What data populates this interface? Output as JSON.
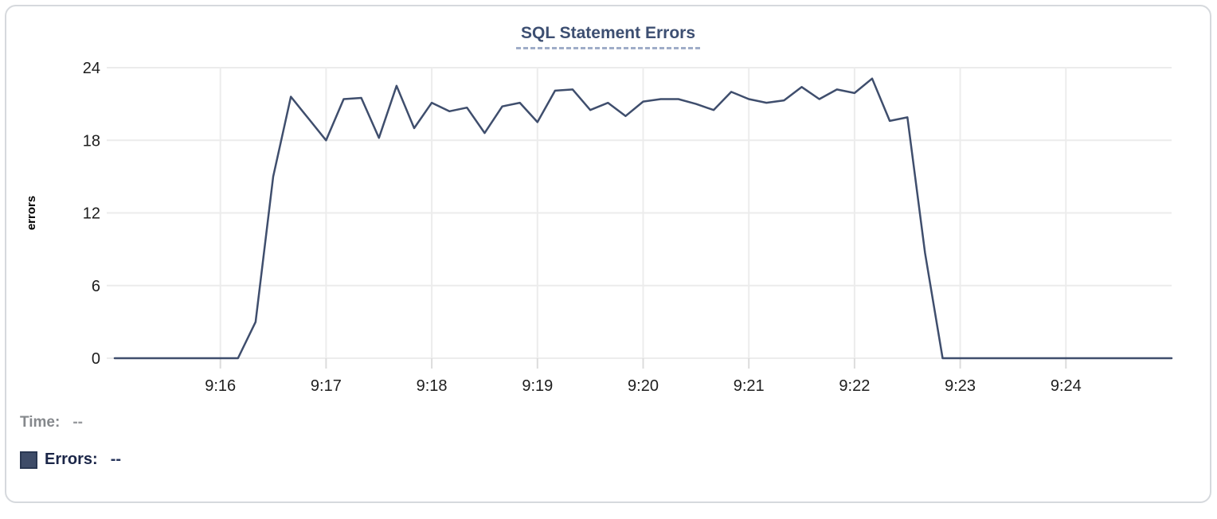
{
  "chart": {
    "title": "SQL Statement Errors"
  },
  "legend": {
    "time_label": "Time:",
    "time_value": "--",
    "errors_label": "Errors:",
    "errors_value": "--",
    "swatch_color": "#3e4c68"
  },
  "colors": {
    "title": "#3d4f72",
    "title_underline": "#9fadc8",
    "card_border": "#d6d9dd",
    "series_line": "#3f4e6d",
    "grid": "#ececec",
    "axis_tick": "#dcdcdc",
    "tick_text": "#1d1d1d"
  },
  "chart_data": {
    "type": "line",
    "title": "SQL Statement Errors",
    "xlabel": "",
    "ylabel": "errors",
    "ylim": [
      0,
      24
    ],
    "y_ticks": [
      0,
      6,
      12,
      18,
      24
    ],
    "x_ticks": [
      "9:16",
      "9:17",
      "9:18",
      "9:19",
      "9:20",
      "9:21",
      "9:22",
      "9:23",
      "9:24"
    ],
    "x_range": [
      "9:15:00",
      "9:25:00"
    ],
    "grid": true,
    "legend_position": "bottom-left",
    "grid_color": "#ececec",
    "tick_color": "#dcdcdc",
    "series": [
      {
        "name": "Errors",
        "color": "#3f4e6d",
        "points": [
          [
            "9:15:00",
            0
          ],
          [
            "9:15:10",
            0
          ],
          [
            "9:15:20",
            0
          ],
          [
            "9:15:30",
            0
          ],
          [
            "9:15:40",
            0
          ],
          [
            "9:15:50",
            0
          ],
          [
            "9:16:00",
            0
          ],
          [
            "9:16:10",
            0
          ],
          [
            "9:16:20",
            3
          ],
          [
            "9:16:30",
            15
          ],
          [
            "9:16:40",
            21.6
          ],
          [
            "9:16:50",
            19.8
          ],
          [
            "9:17:00",
            18
          ],
          [
            "9:17:10",
            21.4
          ],
          [
            "9:17:20",
            21.5
          ],
          [
            "9:17:30",
            18.2
          ],
          [
            "9:17:40",
            22.5
          ],
          [
            "9:17:50",
            19
          ],
          [
            "9:18:00",
            21.1
          ],
          [
            "9:18:10",
            20.4
          ],
          [
            "9:18:20",
            20.7
          ],
          [
            "9:18:30",
            18.6
          ],
          [
            "9:18:40",
            20.8
          ],
          [
            "9:18:50",
            21.1
          ],
          [
            "9:19:00",
            19.5
          ],
          [
            "9:19:10",
            22.1
          ],
          [
            "9:19:20",
            22.2
          ],
          [
            "9:19:30",
            20.5
          ],
          [
            "9:19:40",
            21.1
          ],
          [
            "9:19:50",
            20
          ],
          [
            "9:20:00",
            21.2
          ],
          [
            "9:20:10",
            21.4
          ],
          [
            "9:20:20",
            21.4
          ],
          [
            "9:20:30",
            21
          ],
          [
            "9:20:40",
            20.5
          ],
          [
            "9:20:50",
            22
          ],
          [
            "9:21:00",
            21.4
          ],
          [
            "9:21:10",
            21.1
          ],
          [
            "9:21:20",
            21.3
          ],
          [
            "9:21:30",
            22.4
          ],
          [
            "9:21:40",
            21.4
          ],
          [
            "9:21:50",
            22.2
          ],
          [
            "9:22:00",
            21.9
          ],
          [
            "9:22:10",
            23.1
          ],
          [
            "9:22:20",
            19.6
          ],
          [
            "9:22:30",
            19.9
          ],
          [
            "9:22:40",
            8.7
          ],
          [
            "9:22:50",
            0
          ],
          [
            "9:23:00",
            0
          ],
          [
            "9:23:10",
            0
          ],
          [
            "9:23:20",
            0
          ],
          [
            "9:23:30",
            0
          ],
          [
            "9:23:40",
            0
          ],
          [
            "9:23:50",
            0
          ],
          [
            "9:24:00",
            0
          ],
          [
            "9:24:10",
            0
          ],
          [
            "9:24:20",
            0
          ],
          [
            "9:24:30",
            0
          ],
          [
            "9:24:40",
            0
          ],
          [
            "9:24:50",
            0
          ],
          [
            "9:25:00",
            0
          ]
        ]
      }
    ]
  }
}
